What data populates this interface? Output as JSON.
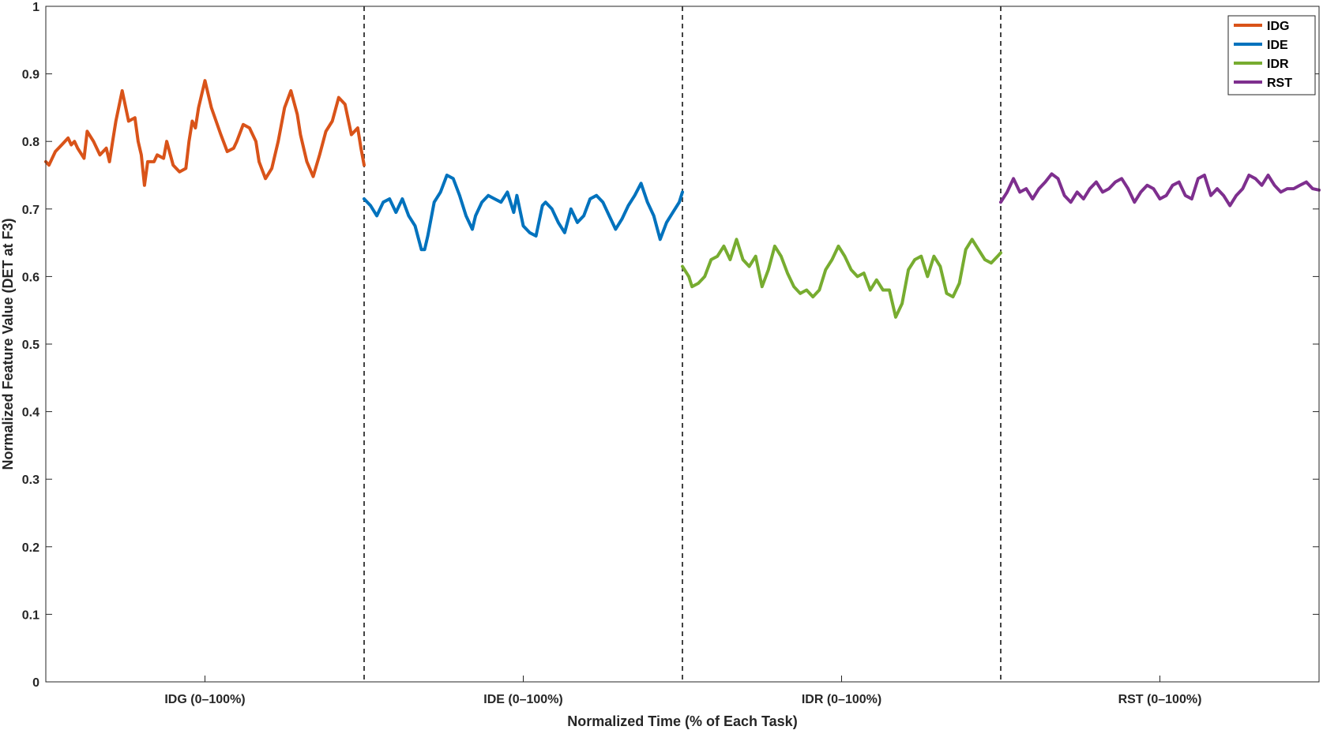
{
  "chart_data": {
    "type": "line",
    "title": "",
    "xlabel": "Normalized Time (% of Each Task)",
    "ylabel": "Normalized Feature Value (DET at F3)",
    "ylim": [
      0,
      1
    ],
    "yticks": [
      "0",
      "0.1",
      "0.2",
      "0.3",
      "0.4",
      "0.5",
      "0.6",
      "0.7",
      "0.8",
      "0.9",
      "1"
    ],
    "xlim": [
      0,
      400
    ],
    "x_tick_labels": [
      {
        "x": 50,
        "label": "IDG (0–100%)"
      },
      {
        "x": 150,
        "label": "IDE (0–100%)"
      },
      {
        "x": 250,
        "label": "IDR (0–100%)"
      },
      {
        "x": 350,
        "label": "RST (0–100%)"
      }
    ],
    "dividers": [
      100,
      200,
      300
    ],
    "grid": false,
    "legend_position": "top-right",
    "series": [
      {
        "name": "IDG",
        "color": "#D95319",
        "x": [
          0,
          1,
          3,
          5,
          7,
          8,
          9,
          10,
          12,
          13,
          15,
          17,
          19,
          20,
          21,
          22,
          24,
          26,
          28,
          29,
          30,
          31,
          32,
          34,
          35,
          37,
          38,
          40,
          42,
          44,
          45,
          46,
          47,
          48,
          50,
          52,
          55,
          57,
          59,
          60,
          62,
          64,
          66,
          67,
          69,
          71,
          73,
          75,
          77,
          79,
          80,
          82,
          84,
          86,
          88,
          90,
          92,
          94,
          96,
          98,
          99,
          100
        ],
        "values": [
          0.77,
          0.765,
          0.785,
          0.795,
          0.805,
          0.795,
          0.8,
          0.79,
          0.775,
          0.815,
          0.8,
          0.78,
          0.79,
          0.77,
          0.8,
          0.83,
          0.875,
          0.83,
          0.835,
          0.8,
          0.78,
          0.735,
          0.77,
          0.77,
          0.78,
          0.775,
          0.8,
          0.765,
          0.755,
          0.76,
          0.8,
          0.83,
          0.82,
          0.85,
          0.89,
          0.85,
          0.81,
          0.785,
          0.79,
          0.8,
          0.825,
          0.82,
          0.8,
          0.77,
          0.745,
          0.76,
          0.8,
          0.85,
          0.875,
          0.84,
          0.81,
          0.77,
          0.748,
          0.78,
          0.815,
          0.83,
          0.865,
          0.855,
          0.81,
          0.82,
          0.79,
          0.765
        ]
      },
      {
        "name": "IDE",
        "color": "#0072BD",
        "x": [
          100,
          102,
          104,
          106,
          108,
          110,
          112,
          114,
          116,
          118,
          119,
          120,
          122,
          124,
          126,
          128,
          130,
          132,
          134,
          135,
          137,
          139,
          141,
          143,
          145,
          147,
          148,
          150,
          152,
          154,
          156,
          157,
          159,
          161,
          163,
          165,
          167,
          169,
          171,
          173,
          175,
          177,
          179,
          181,
          183,
          185,
          187,
          189,
          191,
          193,
          195,
          197,
          199,
          200
        ],
        "values": [
          0.715,
          0.705,
          0.69,
          0.71,
          0.715,
          0.695,
          0.715,
          0.69,
          0.675,
          0.64,
          0.64,
          0.66,
          0.71,
          0.725,
          0.75,
          0.745,
          0.72,
          0.69,
          0.67,
          0.69,
          0.71,
          0.72,
          0.715,
          0.71,
          0.725,
          0.695,
          0.72,
          0.675,
          0.665,
          0.66,
          0.705,
          0.71,
          0.7,
          0.68,
          0.665,
          0.7,
          0.68,
          0.69,
          0.715,
          0.72,
          0.71,
          0.69,
          0.67,
          0.685,
          0.705,
          0.72,
          0.738,
          0.71,
          0.69,
          0.655,
          0.68,
          0.695,
          0.71,
          0.725
        ]
      },
      {
        "name": "IDR",
        "color": "#77AC30",
        "x": [
          200,
          202,
          203,
          205,
          207,
          209,
          211,
          213,
          215,
          217,
          219,
          221,
          223,
          225,
          227,
          229,
          231,
          233,
          235,
          237,
          239,
          241,
          243,
          245,
          247,
          249,
          251,
          253,
          255,
          257,
          259,
          261,
          263,
          265,
          267,
          269,
          271,
          273,
          275,
          277,
          279,
          281,
          283,
          285,
          287,
          289,
          291,
          293,
          295,
          297,
          299,
          300
        ],
        "values": [
          0.615,
          0.6,
          0.585,
          0.59,
          0.6,
          0.625,
          0.63,
          0.645,
          0.625,
          0.655,
          0.625,
          0.615,
          0.63,
          0.585,
          0.61,
          0.645,
          0.63,
          0.605,
          0.585,
          0.575,
          0.58,
          0.57,
          0.58,
          0.61,
          0.625,
          0.645,
          0.63,
          0.61,
          0.6,
          0.605,
          0.58,
          0.595,
          0.58,
          0.58,
          0.54,
          0.56,
          0.61,
          0.625,
          0.63,
          0.6,
          0.63,
          0.615,
          0.575,
          0.57,
          0.59,
          0.64,
          0.655,
          0.64,
          0.625,
          0.62,
          0.63,
          0.635
        ]
      },
      {
        "name": "RST",
        "color": "#7E2F8E",
        "x": [
          300,
          302,
          304,
          306,
          308,
          310,
          312,
          314,
          316,
          318,
          320,
          322,
          324,
          326,
          328,
          330,
          332,
          334,
          336,
          338,
          340,
          342,
          344,
          346,
          348,
          350,
          352,
          354,
          356,
          358,
          360,
          362,
          364,
          366,
          368,
          370,
          372,
          374,
          376,
          378,
          380,
          382,
          384,
          386,
          388,
          390,
          392,
          394,
          396,
          398,
          400
        ],
        "values": [
          0.71,
          0.725,
          0.745,
          0.725,
          0.73,
          0.715,
          0.73,
          0.74,
          0.752,
          0.745,
          0.72,
          0.71,
          0.725,
          0.715,
          0.73,
          0.74,
          0.725,
          0.73,
          0.74,
          0.745,
          0.73,
          0.71,
          0.725,
          0.735,
          0.73,
          0.715,
          0.72,
          0.735,
          0.74,
          0.72,
          0.715,
          0.745,
          0.75,
          0.72,
          0.73,
          0.72,
          0.705,
          0.72,
          0.73,
          0.75,
          0.745,
          0.735,
          0.75,
          0.735,
          0.725,
          0.73,
          0.73,
          0.735,
          0.74,
          0.73,
          0.728
        ]
      }
    ]
  }
}
